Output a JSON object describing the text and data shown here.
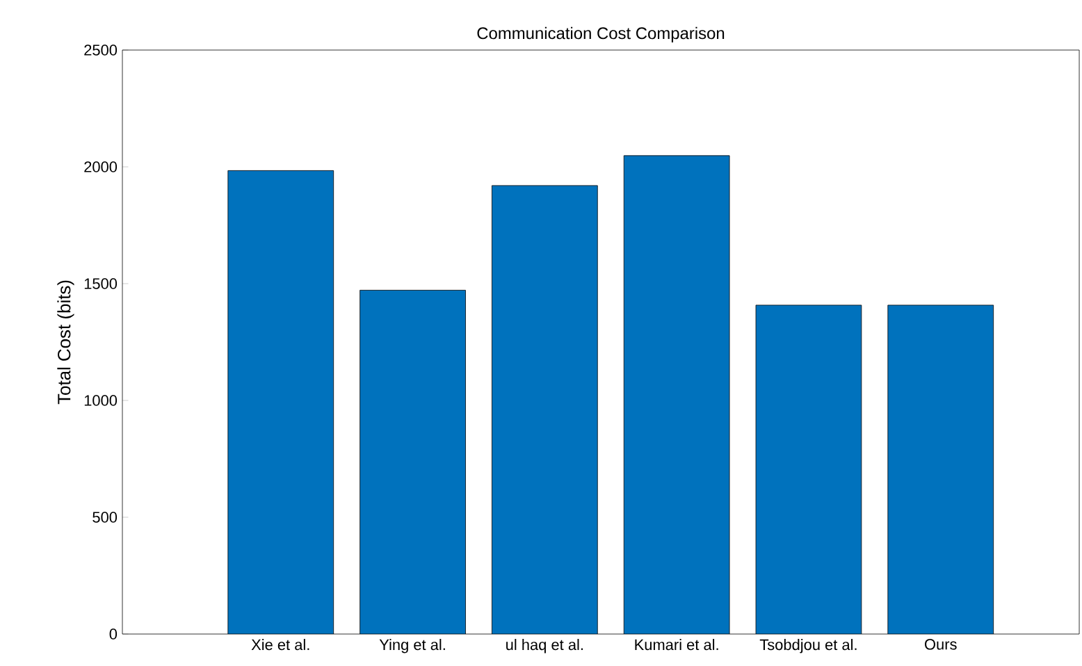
{
  "chart_data": {
    "type": "bar",
    "title": "Communication Cost Comparison",
    "ylabel": "Total Cost (bits)",
    "categories": [
      "Xie et al.",
      "Ying et al.",
      "ul haq et al.",
      "Kumari et al.",
      "Tsobdjou et al.",
      "Ours"
    ],
    "values": [
      1984,
      1472,
      1920,
      2048,
      1408,
      1408
    ],
    "color": "#0072bd",
    "ylim": [
      0,
      2500
    ],
    "yticks": [
      0,
      500,
      1000,
      1500,
      2000,
      2500
    ],
    "grid": false
  }
}
